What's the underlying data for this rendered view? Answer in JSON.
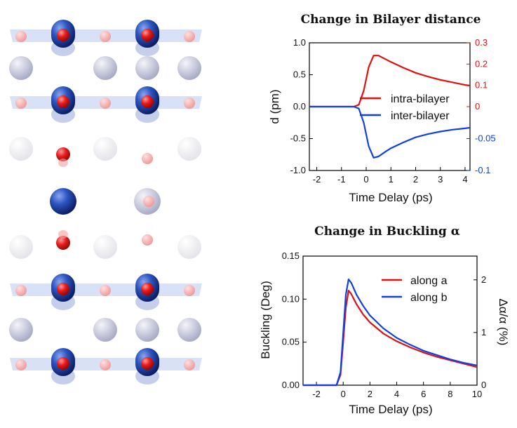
{
  "colors": {
    "red": "#e01010",
    "blue": "#1040e0",
    "atom_blue": "#1a3fa0",
    "atom_red": "#e81c1c",
    "atom_pale": "#c7c9dc",
    "plane": "#b8c8ec"
  },
  "structure": {
    "rows": [
      {
        "kind": "bilayer",
        "blue": "solid",
        "red": "solid"
      },
      {
        "kind": "spacer",
        "shade": "grey"
      },
      {
        "kind": "bilayer",
        "blue": "solid",
        "red": "solid"
      },
      {
        "kind": "spacer",
        "shade": "faint"
      },
      {
        "kind": "mid"
      },
      {
        "kind": "spacer",
        "shade": "faint"
      },
      {
        "kind": "bilayer",
        "blue": "solid",
        "red": "solid"
      },
      {
        "kind": "spacer",
        "shade": "grey"
      },
      {
        "kind": "bilayer",
        "blue": "solid",
        "red": "solid"
      }
    ]
  },
  "chart_data": [
    {
      "type": "line",
      "title": "Change in Bilayer distance",
      "xlabel": "Time Delay (ps)",
      "ylabel": "d (pm)",
      "xlim": [
        -2.3,
        4.2
      ],
      "ylim": [
        -1.0,
        1.0
      ],
      "xticks": [
        "-2",
        "-1",
        "0",
        "1",
        "2",
        "3",
        "4"
      ],
      "yticks": [
        "1.0",
        "0.5",
        "0.0",
        "-0.5",
        "-1.0"
      ],
      "right_axis_red": {
        "ticks": [
          "0.3",
          "0.2",
          "0.1",
          "0"
        ],
        "values": [
          0.3,
          0.2,
          0.1,
          0.0
        ],
        "ylim": [
          -0.3,
          0.3
        ]
      },
      "right_axis_blue": {
        "ticks": [
          "-0.05",
          "-0.1"
        ],
        "values": [
          -0.05,
          -0.1
        ],
        "ylim": [
          -0.1,
          0.1
        ]
      },
      "legend_position": "right",
      "series": [
        {
          "name": "intra-bilayer",
          "color": "#e01010",
          "x": [
            -2.3,
            -0.5,
            -0.3,
            -0.1,
            0.1,
            0.3,
            0.5,
            0.8,
            1.0,
            1.5,
            2.0,
            2.5,
            3.0,
            3.5,
            4.0,
            4.2
          ],
          "y": [
            0.0,
            0.0,
            0.03,
            0.25,
            0.62,
            0.8,
            0.8,
            0.74,
            0.7,
            0.61,
            0.53,
            0.47,
            0.42,
            0.38,
            0.34,
            0.33
          ]
        },
        {
          "name": "inter-bilayer",
          "color": "#1040e0",
          "x": [
            -2.3,
            -0.5,
            -0.3,
            -0.1,
            0.1,
            0.3,
            0.5,
            0.8,
            1.0,
            1.5,
            2.0,
            2.5,
            3.0,
            3.5,
            4.0,
            4.2
          ],
          "y": [
            0.0,
            0.0,
            -0.03,
            -0.25,
            -0.62,
            -0.8,
            -0.78,
            -0.7,
            -0.65,
            -0.56,
            -0.48,
            -0.43,
            -0.39,
            -0.36,
            -0.34,
            -0.33
          ]
        }
      ]
    },
    {
      "type": "line",
      "title": "Change in Buckling α",
      "xlabel": "Time Delay (ps)",
      "ylabel": "Buckling (Deg)",
      "ylabel_right": "Δα/α (%)",
      "xlim": [
        -3.0,
        10.0
      ],
      "ylim": [
        0.0,
        0.15
      ],
      "xticks": [
        "-2",
        "0",
        "2",
        "4",
        "6",
        "8",
        "10"
      ],
      "yticks": [
        "0.15",
        "0.10",
        "0.05",
        "0.00"
      ],
      "right_ticks": [
        "2",
        "1",
        "0"
      ],
      "right_ylim": [
        0.0,
        2.45
      ],
      "legend_position": "top-right",
      "series": [
        {
          "name": "along a",
          "color": "#e01010",
          "x": [
            -3.0,
            -0.5,
            -0.2,
            0.0,
            0.2,
            0.4,
            0.6,
            1.0,
            1.5,
            2.0,
            3.0,
            4.0,
            5.0,
            6.0,
            7.0,
            8.0,
            9.0,
            10.0
          ],
          "y": [
            0.0,
            0.0,
            0.012,
            0.05,
            0.09,
            0.11,
            0.106,
            0.094,
            0.082,
            0.073,
            0.06,
            0.051,
            0.044,
            0.038,
            0.033,
            0.029,
            0.025,
            0.021
          ]
        },
        {
          "name": "along b",
          "color": "#1040e0",
          "x": [
            -3.0,
            -0.5,
            -0.2,
            0.0,
            0.2,
            0.4,
            0.6,
            1.0,
            1.5,
            2.0,
            3.0,
            4.0,
            5.0,
            6.0,
            7.0,
            8.0,
            9.0,
            10.0
          ],
          "y": [
            0.0,
            0.0,
            0.015,
            0.06,
            0.105,
            0.123,
            0.119,
            0.105,
            0.092,
            0.081,
            0.066,
            0.055,
            0.047,
            0.04,
            0.035,
            0.03,
            0.026,
            0.023
          ]
        }
      ]
    }
  ]
}
